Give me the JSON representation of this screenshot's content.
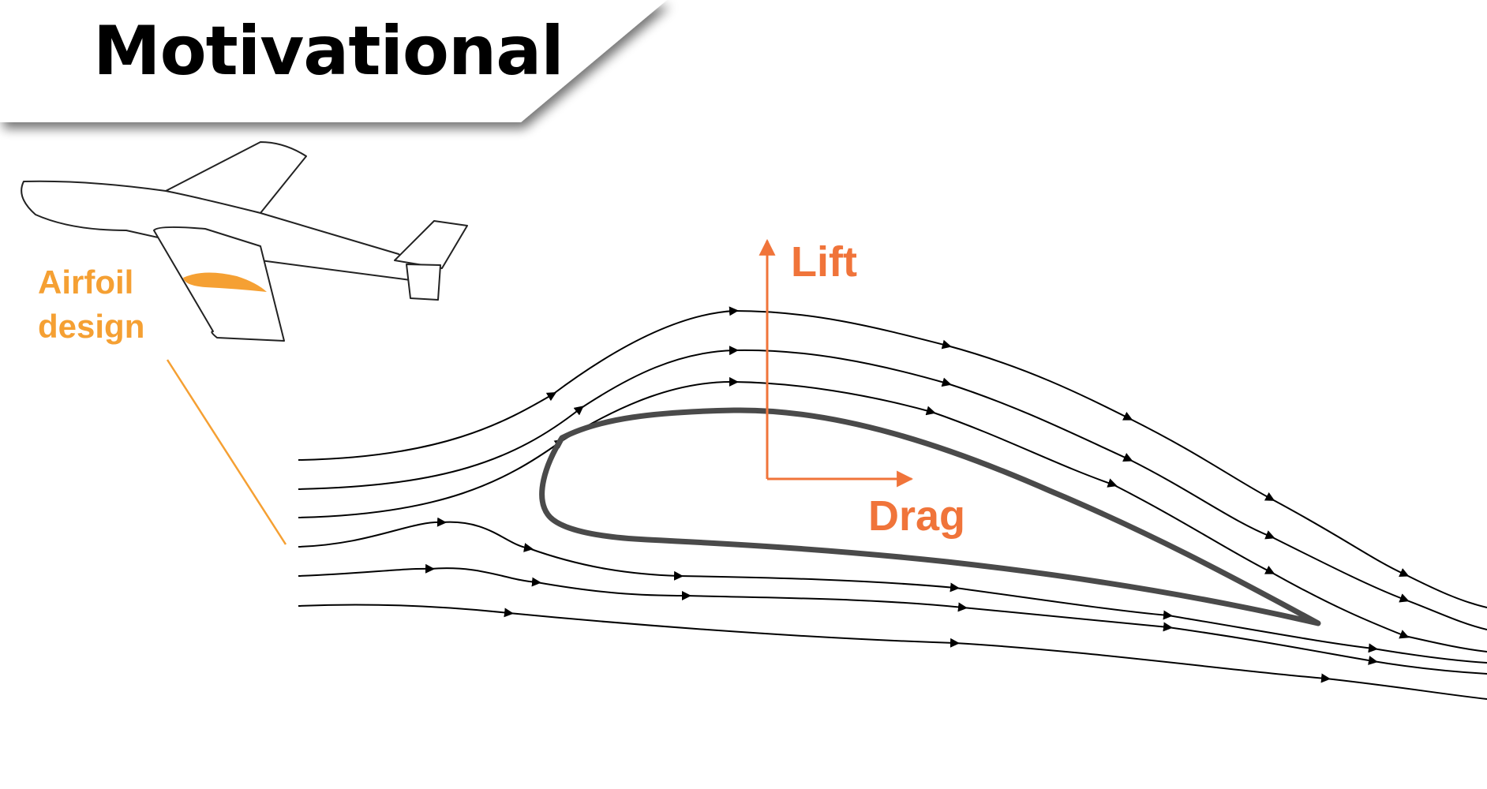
{
  "title": "Motivational",
  "labels": {
    "airfoil_line1": "Airfoil",
    "airfoil_line2": "design",
    "lift": "Lift",
    "drag": "Drag"
  },
  "colors": {
    "airfoil_label": "#f5a033",
    "force_arrows": "#f0743a",
    "streamlines": "#000000",
    "airfoil_outline": "#4a4a4a",
    "banner_bg": "#ffffff"
  },
  "icons": {
    "airplane": "airplane-sketch",
    "streamline_arrow": "arrowhead"
  }
}
